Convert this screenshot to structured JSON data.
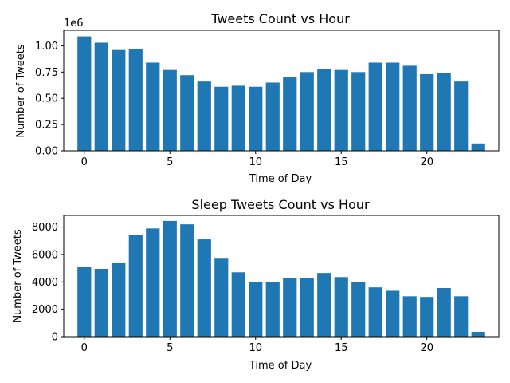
{
  "chart_data": [
    {
      "type": "bar",
      "title": "Tweets Count vs Hour",
      "xlabel": "Time of Day",
      "ylabel": "Number of Tweets",
      "y_offset_label": "1e6",
      "x": [
        0,
        1,
        2,
        3,
        4,
        5,
        6,
        7,
        8,
        9,
        10,
        11,
        12,
        13,
        14,
        15,
        16,
        17,
        18,
        19,
        20,
        21,
        22,
        23
      ],
      "values": [
        1.09,
        1.03,
        0.96,
        0.97,
        0.84,
        0.77,
        0.72,
        0.66,
        0.61,
        0.62,
        0.61,
        0.65,
        0.7,
        0.75,
        0.78,
        0.77,
        0.75,
        0.84,
        0.84,
        0.81,
        0.73,
        0.74,
        0.66,
        0.07
      ],
      "xlim": [
        -1.2,
        24.2
      ],
      "ylim": [
        0,
        1.1475
      ],
      "xticks": [
        0,
        5,
        10,
        15,
        20
      ],
      "xtick_labels": [
        "0",
        "5",
        "10",
        "15",
        "20"
      ],
      "yticks": [
        0,
        0.25,
        0.5,
        0.75,
        1.0
      ],
      "ytick_labels": [
        "0.00",
        "0.25",
        "0.50",
        "0.75",
        "1.00"
      ],
      "color": "#1f77b4",
      "grid": false
    },
    {
      "type": "bar",
      "title": "Sleep Tweets Count vs Hour",
      "xlabel": "Time of Day",
      "ylabel": "Number of Tweets",
      "x": [
        0,
        1,
        2,
        3,
        4,
        5,
        6,
        7,
        8,
        9,
        10,
        11,
        12,
        13,
        14,
        15,
        16,
        17,
        18,
        19,
        20,
        21,
        22,
        23
      ],
      "values": [
        5100,
        4950,
        5400,
        7400,
        7900,
        8450,
        8200,
        7100,
        5750,
        4700,
        4000,
        4000,
        4300,
        4300,
        4650,
        4350,
        4000,
        3600,
        3350,
        2950,
        2900,
        3550,
        2950,
        350
      ],
      "xlim": [
        -1.2,
        24.2
      ],
      "ylim": [
        0,
        8850
      ],
      "xticks": [
        0,
        5,
        10,
        15,
        20
      ],
      "xtick_labels": [
        "0",
        "5",
        "10",
        "15",
        "20"
      ],
      "yticks": [
        0,
        2000,
        4000,
        6000,
        8000
      ],
      "ytick_labels": [
        "0",
        "2000",
        "4000",
        "6000",
        "8000"
      ],
      "color": "#1f77b4",
      "grid": false
    }
  ]
}
